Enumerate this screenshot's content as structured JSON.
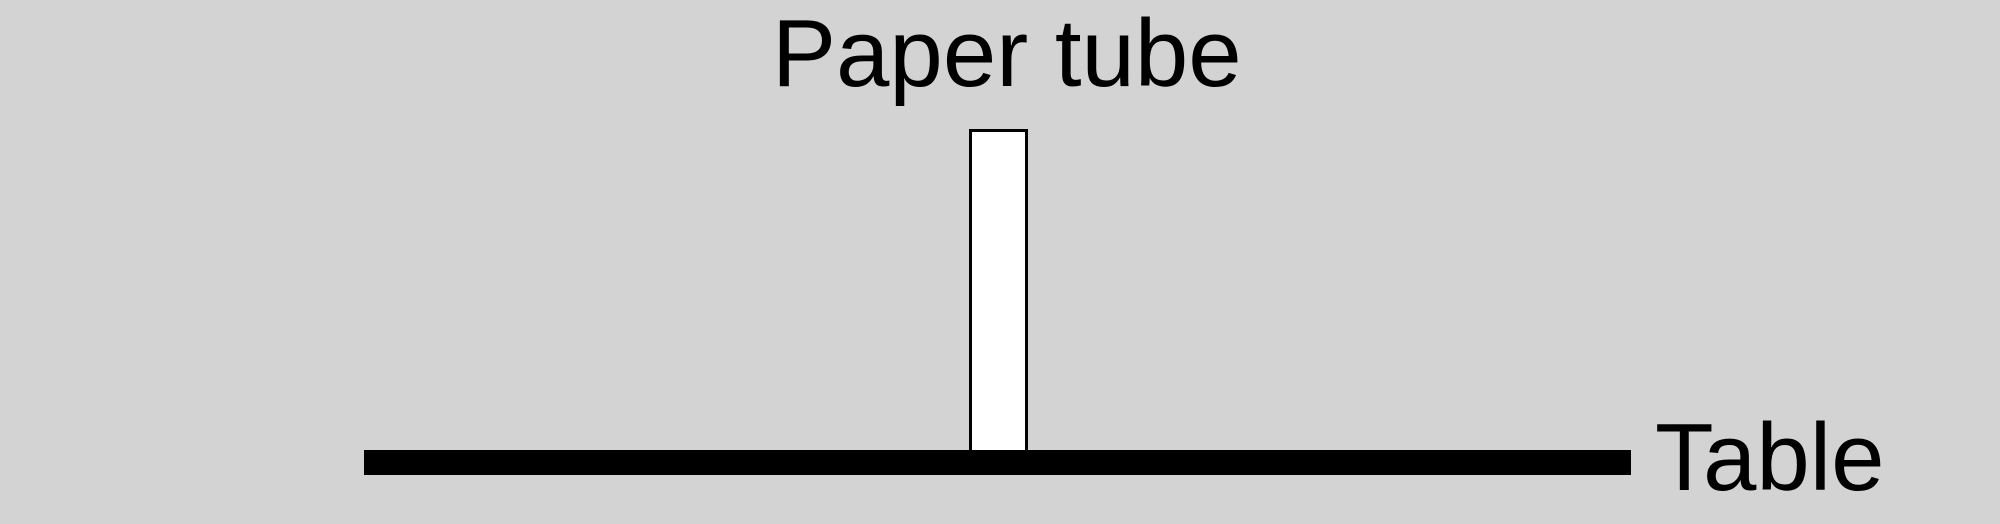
{
  "diagram": {
    "tube_label": "Paper tube",
    "table_label": "Table",
    "colors": {
      "background": "#d3d3d3",
      "tube_fill": "#ffffff",
      "outline": "#000000",
      "table": "#000000"
    }
  }
}
